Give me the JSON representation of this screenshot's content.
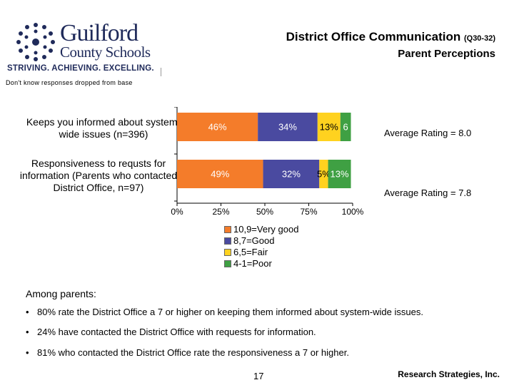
{
  "header": {
    "logo": {
      "name_line1": "Guilford",
      "name_line2": "County Schools",
      "tagline": "STRIVING. ACHIEVING. EXCELLING."
    },
    "title": "District Office Communication",
    "title_code": "(Q30-32)",
    "subtitle": "Parent Perceptions"
  },
  "note": "Don't know responses dropped from base",
  "chart_data": {
    "type": "bar",
    "orientation": "horizontal",
    "stacked": true,
    "categories": [
      "Keeps you informed about system-wide issues (n=396)",
      "Responsiveness to requsts for information (Parents who contacted District Office, n=97)"
    ],
    "series": [
      {
        "name": "10,9=Very good",
        "values": [
          46,
          49
        ],
        "labels": [
          "46%",
          "49%"
        ],
        "color": "#f47c2a"
      },
      {
        "name": "8,7=Good",
        "values": [
          34,
          32
        ],
        "labels": [
          "34%",
          "32%"
        ],
        "color": "#4a4aa0"
      },
      {
        "name": "6,5=Fair",
        "values": [
          13,
          5
        ],
        "labels": [
          "13%",
          "5%"
        ],
        "color": "#ffd21f"
      },
      {
        "name": "4-1=Poor",
        "values": [
          6,
          13
        ],
        "labels": [
          "6",
          "13%"
        ],
        "color": "#3fa043"
      }
    ],
    "x_ticks": [
      "0%",
      "25%",
      "50%",
      "75%",
      "100%"
    ],
    "xlim": [
      0,
      100
    ],
    "annotations": [
      "Average Rating = 8.0",
      "Average Rating = 7.8"
    ],
    "legend_position": "bottom"
  },
  "findings": {
    "intro": "Among parents:",
    "bullets": [
      "80% rate the District Office a 7 or higher on keeping them informed about system-wide issues.",
      "24% have contacted the District Office with requests for information.",
      "81% who contacted the District Office rate the responsiveness a 7 or higher."
    ]
  },
  "footer": {
    "page_number": "17",
    "company": "Research Strategies, Inc."
  }
}
